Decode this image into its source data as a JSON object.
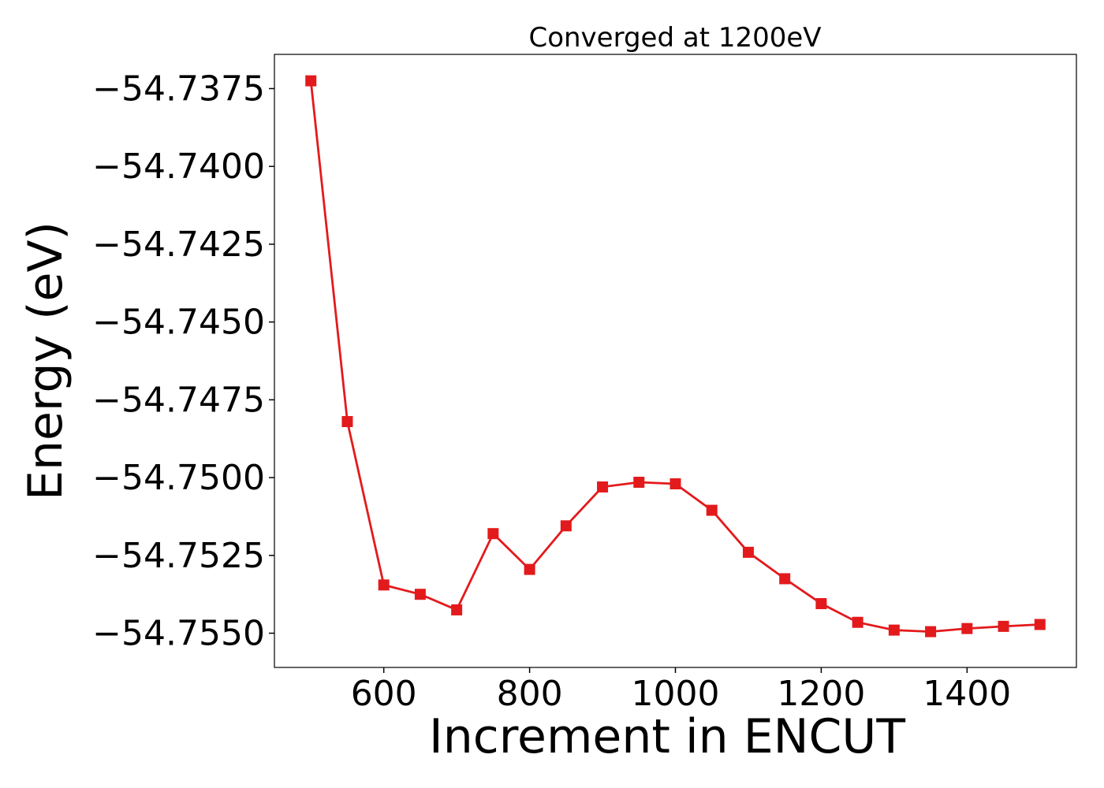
{
  "chart_data": {
    "type": "line",
    "title": "Converged at 1200eV",
    "xlabel": "Increment in ENCUT",
    "ylabel": "Energy (eV)",
    "xlim": [
      450,
      1550
    ],
    "ylim": [
      -54.7561,
      -54.7364
    ],
    "x_ticks": [
      600,
      800,
      1000,
      1200,
      1400
    ],
    "x_tick_labels": [
      "600",
      "800",
      "1000",
      "1200",
      "1400"
    ],
    "y_ticks": [
      -54.7375,
      -54.74,
      -54.7425,
      -54.745,
      -54.7475,
      -54.75,
      -54.7525,
      -54.755
    ],
    "y_tick_labels": [
      "−54.7375",
      "−54.7400",
      "−54.7425",
      "−54.7450",
      "−54.7475",
      "−54.7500",
      "−54.7525",
      "−54.7550"
    ],
    "grid": false,
    "marker": "square",
    "color": "#e31a1c",
    "x": [
      500,
      550,
      600,
      650,
      700,
      750,
      800,
      850,
      900,
      950,
      1000,
      1050,
      1100,
      1150,
      1200,
      1250,
      1300,
      1350,
      1400,
      1450,
      1500
    ],
    "series": [
      {
        "values": [
          -54.73725,
          -54.7482,
          -54.75345,
          -54.75375,
          -54.75425,
          -54.7518,
          -54.75295,
          -54.75155,
          -54.7503,
          -54.75015,
          -54.7502,
          -54.75105,
          -54.7524,
          -54.75325,
          -54.75405,
          -54.75465,
          -54.7549,
          -54.75495,
          -54.75485,
          -54.75478,
          -54.75472
        ]
      }
    ]
  }
}
